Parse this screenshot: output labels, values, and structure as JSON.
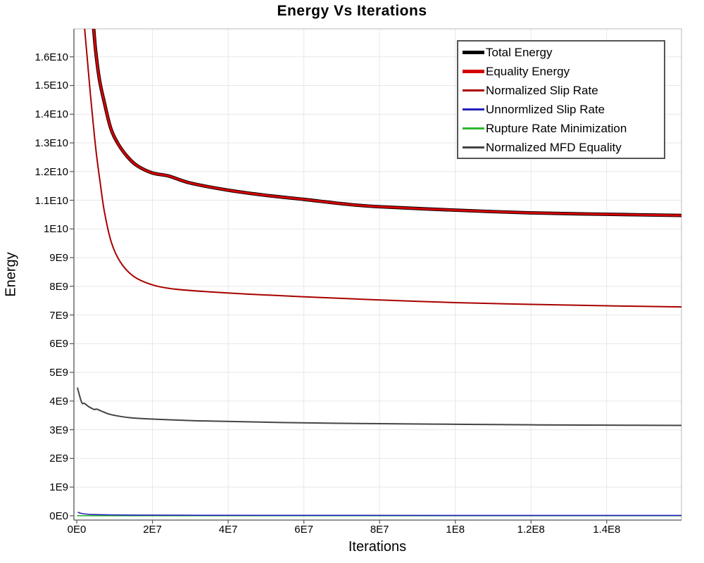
{
  "chart_data": {
    "type": "line",
    "title": "Energy Vs Iterations",
    "xlabel": "Iterations",
    "ylabel": "Energy",
    "x_range": [
      0,
      160000000.0
    ],
    "y_range": [
      0,
      17000000000.0
    ],
    "grid": true,
    "legend_position": "top-right",
    "x_ticks": [
      {
        "v": 0,
        "label": "0E0"
      },
      {
        "v": 20000000.0,
        "label": "2E7"
      },
      {
        "v": 40000000.0,
        "label": "4E7"
      },
      {
        "v": 60000000.0,
        "label": "6E7"
      },
      {
        "v": 80000000.0,
        "label": "8E7"
      },
      {
        "v": 100000000.0,
        "label": "1E8"
      },
      {
        "v": 120000000.0,
        "label": "1.2E8"
      },
      {
        "v": 140000000.0,
        "label": "1.4E8"
      }
    ],
    "y_ticks": [
      {
        "v": 0,
        "label": "0E0"
      },
      {
        "v": 1000000000.0,
        "label": "1E9"
      },
      {
        "v": 2000000000.0,
        "label": "2E9"
      },
      {
        "v": 3000000000.0,
        "label": "3E9"
      },
      {
        "v": 4000000000.0,
        "label": "4E9"
      },
      {
        "v": 5000000000.0,
        "label": "5E9"
      },
      {
        "v": 6000000000.0,
        "label": "6E9"
      },
      {
        "v": 7000000000.0,
        "label": "7E9"
      },
      {
        "v": 8000000000.0,
        "label": "8E9"
      },
      {
        "v": 9000000000.0,
        "label": "9E9"
      },
      {
        "v": 10000000000.0,
        "label": "1E10"
      },
      {
        "v": 11000000000.0,
        "label": "1.1E10"
      },
      {
        "v": 12000000000.0,
        "label": "1.2E10"
      },
      {
        "v": 13000000000.0,
        "label": "1.3E10"
      },
      {
        "v": 14000000000.0,
        "label": "1.4E10"
      },
      {
        "v": 15000000000.0,
        "label": "1.5E10"
      },
      {
        "v": 16000000000.0,
        "label": "1.6E10"
      }
    ],
    "series": [
      {
        "name": "Total Energy",
        "color": "#000000",
        "width": 4.8,
        "swatch_width": 5,
        "z": 4,
        "x": [
          4400000.0,
          5000000.0,
          6000000.0,
          7300000.0,
          9000000.0,
          11000000.0,
          13500000.0,
          16000000.0,
          20000000.0,
          24400000.0,
          30000000.0,
          40000000.0,
          50000000.0,
          60000000.0,
          70000000.0,
          79000000.0,
          99000000.0,
          120000000.0,
          140000000.0,
          160000000.0
        ],
        "y": [
          17100000000.0,
          16200000000.0,
          15200000000.0,
          14400000000.0,
          13500000000.0,
          12950000000.0,
          12500000000.0,
          12200000000.0,
          11950000000.0,
          11840000000.0,
          11600000000.0,
          11350000000.0,
          11170000000.0,
          11030000000.0,
          10880000000.0,
          10780000000.0,
          10660000000.0,
          10560000000.0,
          10510000000.0,
          10470000000.0
        ]
      },
      {
        "name": "Equality Energy",
        "color": "#d40000",
        "width": 3.0,
        "swatch_width": 5,
        "z": 5,
        "x": [
          4400000.0,
          5000000.0,
          6000000.0,
          7300000.0,
          9000000.0,
          11000000.0,
          13500000.0,
          16000000.0,
          20000000.0,
          24400000.0,
          30000000.0,
          40000000.0,
          50000000.0,
          60000000.0,
          70000000.0,
          79000000.0,
          99000000.0,
          120000000.0,
          140000000.0,
          160000000.0
        ],
        "y": [
          17100000000.0,
          16200000000.0,
          15200000000.0,
          14400000000.0,
          13500000000.0,
          12950000000.0,
          12500000000.0,
          12200000000.0,
          11950000000.0,
          11840000000.0,
          11600000000.0,
          11350000000.0,
          11170000000.0,
          11030000000.0,
          10880000000.0,
          10780000000.0,
          10660000000.0,
          10560000000.0,
          10510000000.0,
          10470000000.0
        ]
      },
      {
        "name": "Normalized Slip Rate",
        "color": "#a80000",
        "width": 2.0,
        "swatch_width": 2.5,
        "z": 3,
        "x": [
          2000000.0,
          2800000.0,
          3600000.0,
          4400000.0,
          5200000.0,
          6200000.0,
          7300000.0,
          9100000.0,
          11500000.0,
          15000000.0,
          20000000.0,
          26000000.0,
          36000000.0,
          45000000.0,
          59000000.0,
          79000000.0,
          100000000.0,
          120000000.0,
          140000000.0,
          160000000.0
        ],
        "y": [
          17100000000.0,
          15900000000.0,
          14700000000.0,
          13600000000.0,
          12600000000.0,
          11600000000.0,
          10600000000.0,
          9550000000.0,
          8850000000.0,
          8350000000.0,
          8050000000.0,
          7900000000.0,
          7800000000.0,
          7730000000.0,
          7640000000.0,
          7530000000.0,
          7430000000.0,
          7370000000.0,
          7320000000.0,
          7280000000.0
        ]
      },
      {
        "name": "Unnormlized Slip Rate",
        "color": "#2222bb",
        "width": 1.6,
        "swatch_width": 2.5,
        "z": 1,
        "x": [
          400000.0,
          1000000.0,
          2000000.0,
          4000000.0,
          8000000.0,
          15000000.0,
          30000000.0,
          60000000.0,
          100000000.0,
          160000000.0
        ],
        "y": [
          120000000.0,
          90000000.0,
          65000000.0,
          45000000.0,
          32000000.0,
          24000000.0,
          18000000.0,
          14000000.0,
          12000000.0,
          11000000.0
        ]
      },
      {
        "name": "Rupture Rate Minimization",
        "color": "#2eb82e",
        "width": 1.6,
        "swatch_width": 2.5,
        "z": 0,
        "x": [
          200000.0,
          20000000.0,
          60000000.0,
          100000000.0,
          160000000.0
        ],
        "y": [
          2000000.0,
          2000000.0,
          2000000.0,
          2000000.0,
          2000000.0
        ]
      },
      {
        "name": "Normalized MFD Equality",
        "color": "#444444",
        "width": 2.0,
        "swatch_width": 2.5,
        "z": 2,
        "x": [
          200000.0,
          1300000.0,
          2000000.0,
          3200000.0,
          4200000.0,
          4700000.0,
          5200000.0,
          6500000.0,
          8400000.0,
          10000000.0,
          14000000.0,
          20000000.0,
          30000000.0,
          36000000.0,
          54000000.0,
          80000000.0,
          100000000.0,
          120000000.0,
          140000000.0,
          160000000.0
        ],
        "y": [
          4450000000.0,
          3950000000.0,
          3920000000.0,
          3800000000.0,
          3730000000.0,
          3700000000.0,
          3720000000.0,
          3650000000.0,
          3550000000.0,
          3500000000.0,
          3420000000.0,
          3370000000.0,
          3320000000.0,
          3300000000.0,
          3250000000.0,
          3210000000.0,
          3190000000.0,
          3170000000.0,
          3160000000.0,
          3150000000.0
        ]
      }
    ]
  }
}
